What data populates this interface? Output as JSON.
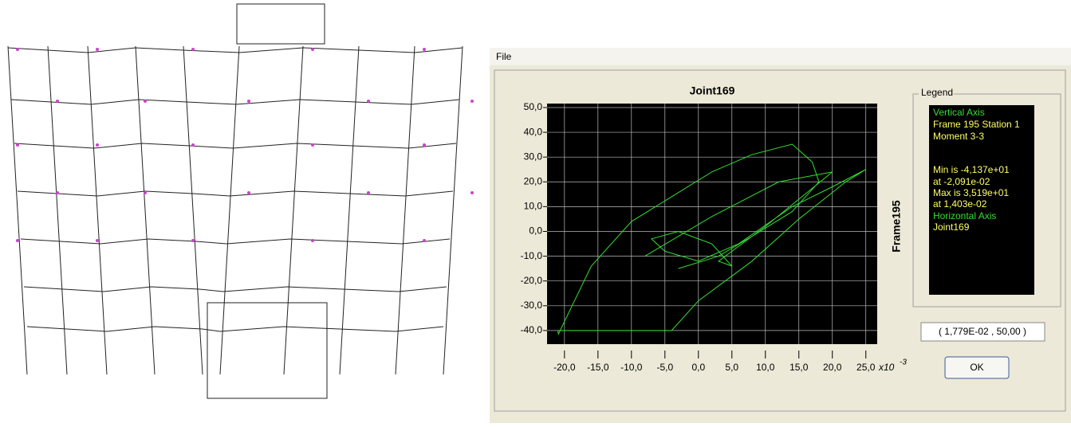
{
  "menu": {
    "file": "File"
  },
  "chart_data": {
    "type": "line",
    "title": "Joint169",
    "y_label": "Frame195",
    "x_unit_label": "x10",
    "x_unit_exponent": "-3",
    "xlim": [
      -22.6,
      26.7
    ],
    "ylim": [
      -45.5,
      51.6
    ],
    "xticks": [
      {
        "value": -20,
        "label": "-20,0"
      },
      {
        "value": -15,
        "label": "-15,0"
      },
      {
        "value": -10,
        "label": "-10,0"
      },
      {
        "value": -5,
        "label": "-5,0"
      },
      {
        "value": 0,
        "label": "0,0"
      },
      {
        "value": 5,
        "label": "5,0"
      },
      {
        "value": 10,
        "label": "10,0"
      },
      {
        "value": 15,
        "label": "15,0"
      },
      {
        "value": 20,
        "label": "20,0"
      },
      {
        "value": 25,
        "label": "25,0"
      }
    ],
    "yticks": [
      {
        "value": 50,
        "label": "50,0"
      },
      {
        "value": 40,
        "label": "40,0"
      },
      {
        "value": 30,
        "label": "30,0"
      },
      {
        "value": 20,
        "label": "20,0"
      },
      {
        "value": 10,
        "label": "10,0"
      },
      {
        "value": 0,
        "label": "0,0"
      },
      {
        "value": -10,
        "label": "-10,0"
      },
      {
        "value": -20,
        "label": "-20,0"
      },
      {
        "value": -30,
        "label": "-30,0"
      },
      {
        "value": -40,
        "label": "-40,0"
      }
    ],
    "grid": true,
    "series": [
      {
        "color": "#33dd33",
        "x": [
          -3,
          3,
          8,
          14,
          18,
          17,
          14,
          8,
          2,
          -4,
          -10,
          -16,
          -20.9,
          -21,
          -4,
          0,
          4,
          8,
          15,
          22,
          25,
          20,
          14,
          6,
          0,
          -5,
          -7,
          -3,
          2,
          5,
          3,
          10,
          20,
          12,
          2,
          -8
        ],
        "values": [
          -15,
          -10,
          -2,
          8,
          20,
          28,
          35.2,
          31,
          24,
          14,
          4,
          -14,
          -41.4,
          -40,
          -40,
          -28,
          -20,
          -12,
          5,
          20,
          25,
          18,
          10,
          -5,
          -12,
          -8,
          -3,
          0,
          -5,
          -14,
          -12,
          2,
          24,
          20,
          6,
          -10
        ]
      }
    ],
    "readout": "( 1,779E-02 , 50,00 )"
  },
  "legend": {
    "title": "Legend",
    "lines": [
      "Vertical Axis",
      "Frame 195  Station 1",
      "Moment 3-3",
      "Min is -4,137e+01",
      "at -2,091e-02",
      "Max is 3,519e+01",
      "at 1,403e-02",
      "Horizontal Axis",
      "Joint169"
    ]
  },
  "button": {
    "ok": "OK"
  }
}
